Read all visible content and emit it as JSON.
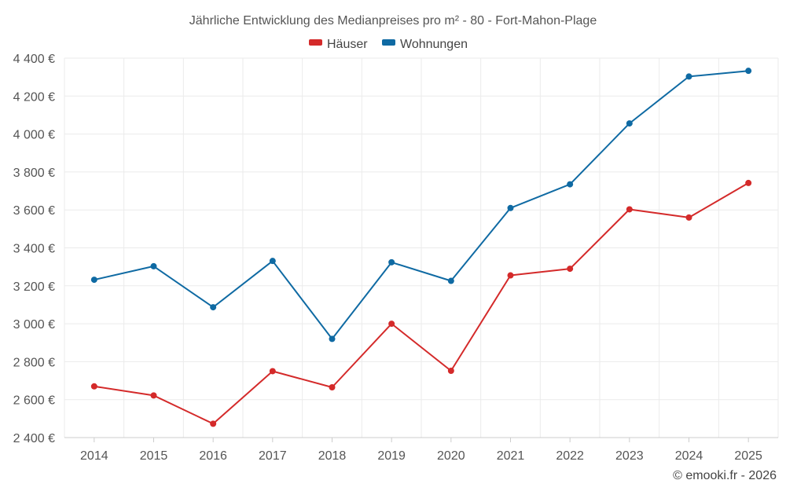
{
  "chart_data": {
    "type": "line",
    "title": "Jährliche Entwicklung des Medianpreises pro m² - 80 - Fort-Mahon-Plage",
    "categories": [
      "2014",
      "2015",
      "2016",
      "2017",
      "2018",
      "2019",
      "2020",
      "2021",
      "2022",
      "2023",
      "2024",
      "2025"
    ],
    "series": [
      {
        "name": "Häuser",
        "color": "#d42a2a",
        "values": [
          2670,
          2622,
          2473,
          2750,
          2665,
          3000,
          2752,
          3255,
          3290,
          3603,
          3560,
          3742
        ]
      },
      {
        "name": "Wohnungen",
        "color": "#0f6aa3",
        "values": [
          3232,
          3303,
          3087,
          3331,
          2920,
          3324,
          3226,
          3610,
          3735,
          4056,
          4303,
          4333
        ]
      }
    ],
    "ylim": [
      2400,
      4400
    ],
    "yticks": [
      2400,
      2600,
      2800,
      3000,
      3200,
      3400,
      3600,
      3800,
      4000,
      4200,
      4400
    ],
    "ytick_labels": [
      "2 400 €",
      "2 600 €",
      "2 800 €",
      "3 000 €",
      "3 200 €",
      "3 400 €",
      "3 600 €",
      "3 800 €",
      "4 000 €",
      "4 200 €",
      "4 400 €"
    ],
    "xlabel": "",
    "ylabel": "",
    "grid": true,
    "legend_position": "top-center"
  },
  "credit": "© emooki.fr - 2026"
}
